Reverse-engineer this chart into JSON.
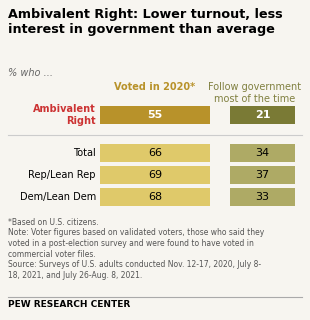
{
  "title": "Ambivalent Right: Lower turnout, less\ninterest in government than average",
  "subtitle": "% who ...",
  "col1_header": "Voted in 2020*",
  "col2_header": "Follow government\nmost of the time",
  "categories": [
    "Ambivalent\nRight",
    "Total",
    "Rep/Lean Rep",
    "Dem/Lean Dem"
  ],
  "col1_values": [
    55,
    66,
    69,
    68
  ],
  "col2_values": [
    21,
    34,
    37,
    33
  ],
  "col1_bar_colors": [
    "#b8922a",
    "#dfc96a",
    "#dfc96a",
    "#dfc96a"
  ],
  "col2_bar_colors": [
    "#7a7a35",
    "#aeaa65",
    "#aeaa65",
    "#aeaa65"
  ],
  "col1_text_colors": [
    "white",
    "black",
    "black",
    "black"
  ],
  "col2_text_colors": [
    "white",
    "black",
    "black",
    "black"
  ],
  "ambivalent_label_color": "#cc3333",
  "col1_header_color": "#b8922a",
  "col2_header_color": "#808040",
  "note1": "*Based on U.S. citizens.",
  "note2": "Note: Voter figures based on validated voters, those who said they\nvoted in a post-election survey and were found to have voted in\ncommercial voter files.",
  "source": "Source: Surveys of U.S. adults conducted Nov. 12-17, 2020, July 8-\n18, 2021, and July 26-Aug. 8, 2021.",
  "footer": "PEW RESEARCH CENTER",
  "bg_color": "#f7f5f0"
}
